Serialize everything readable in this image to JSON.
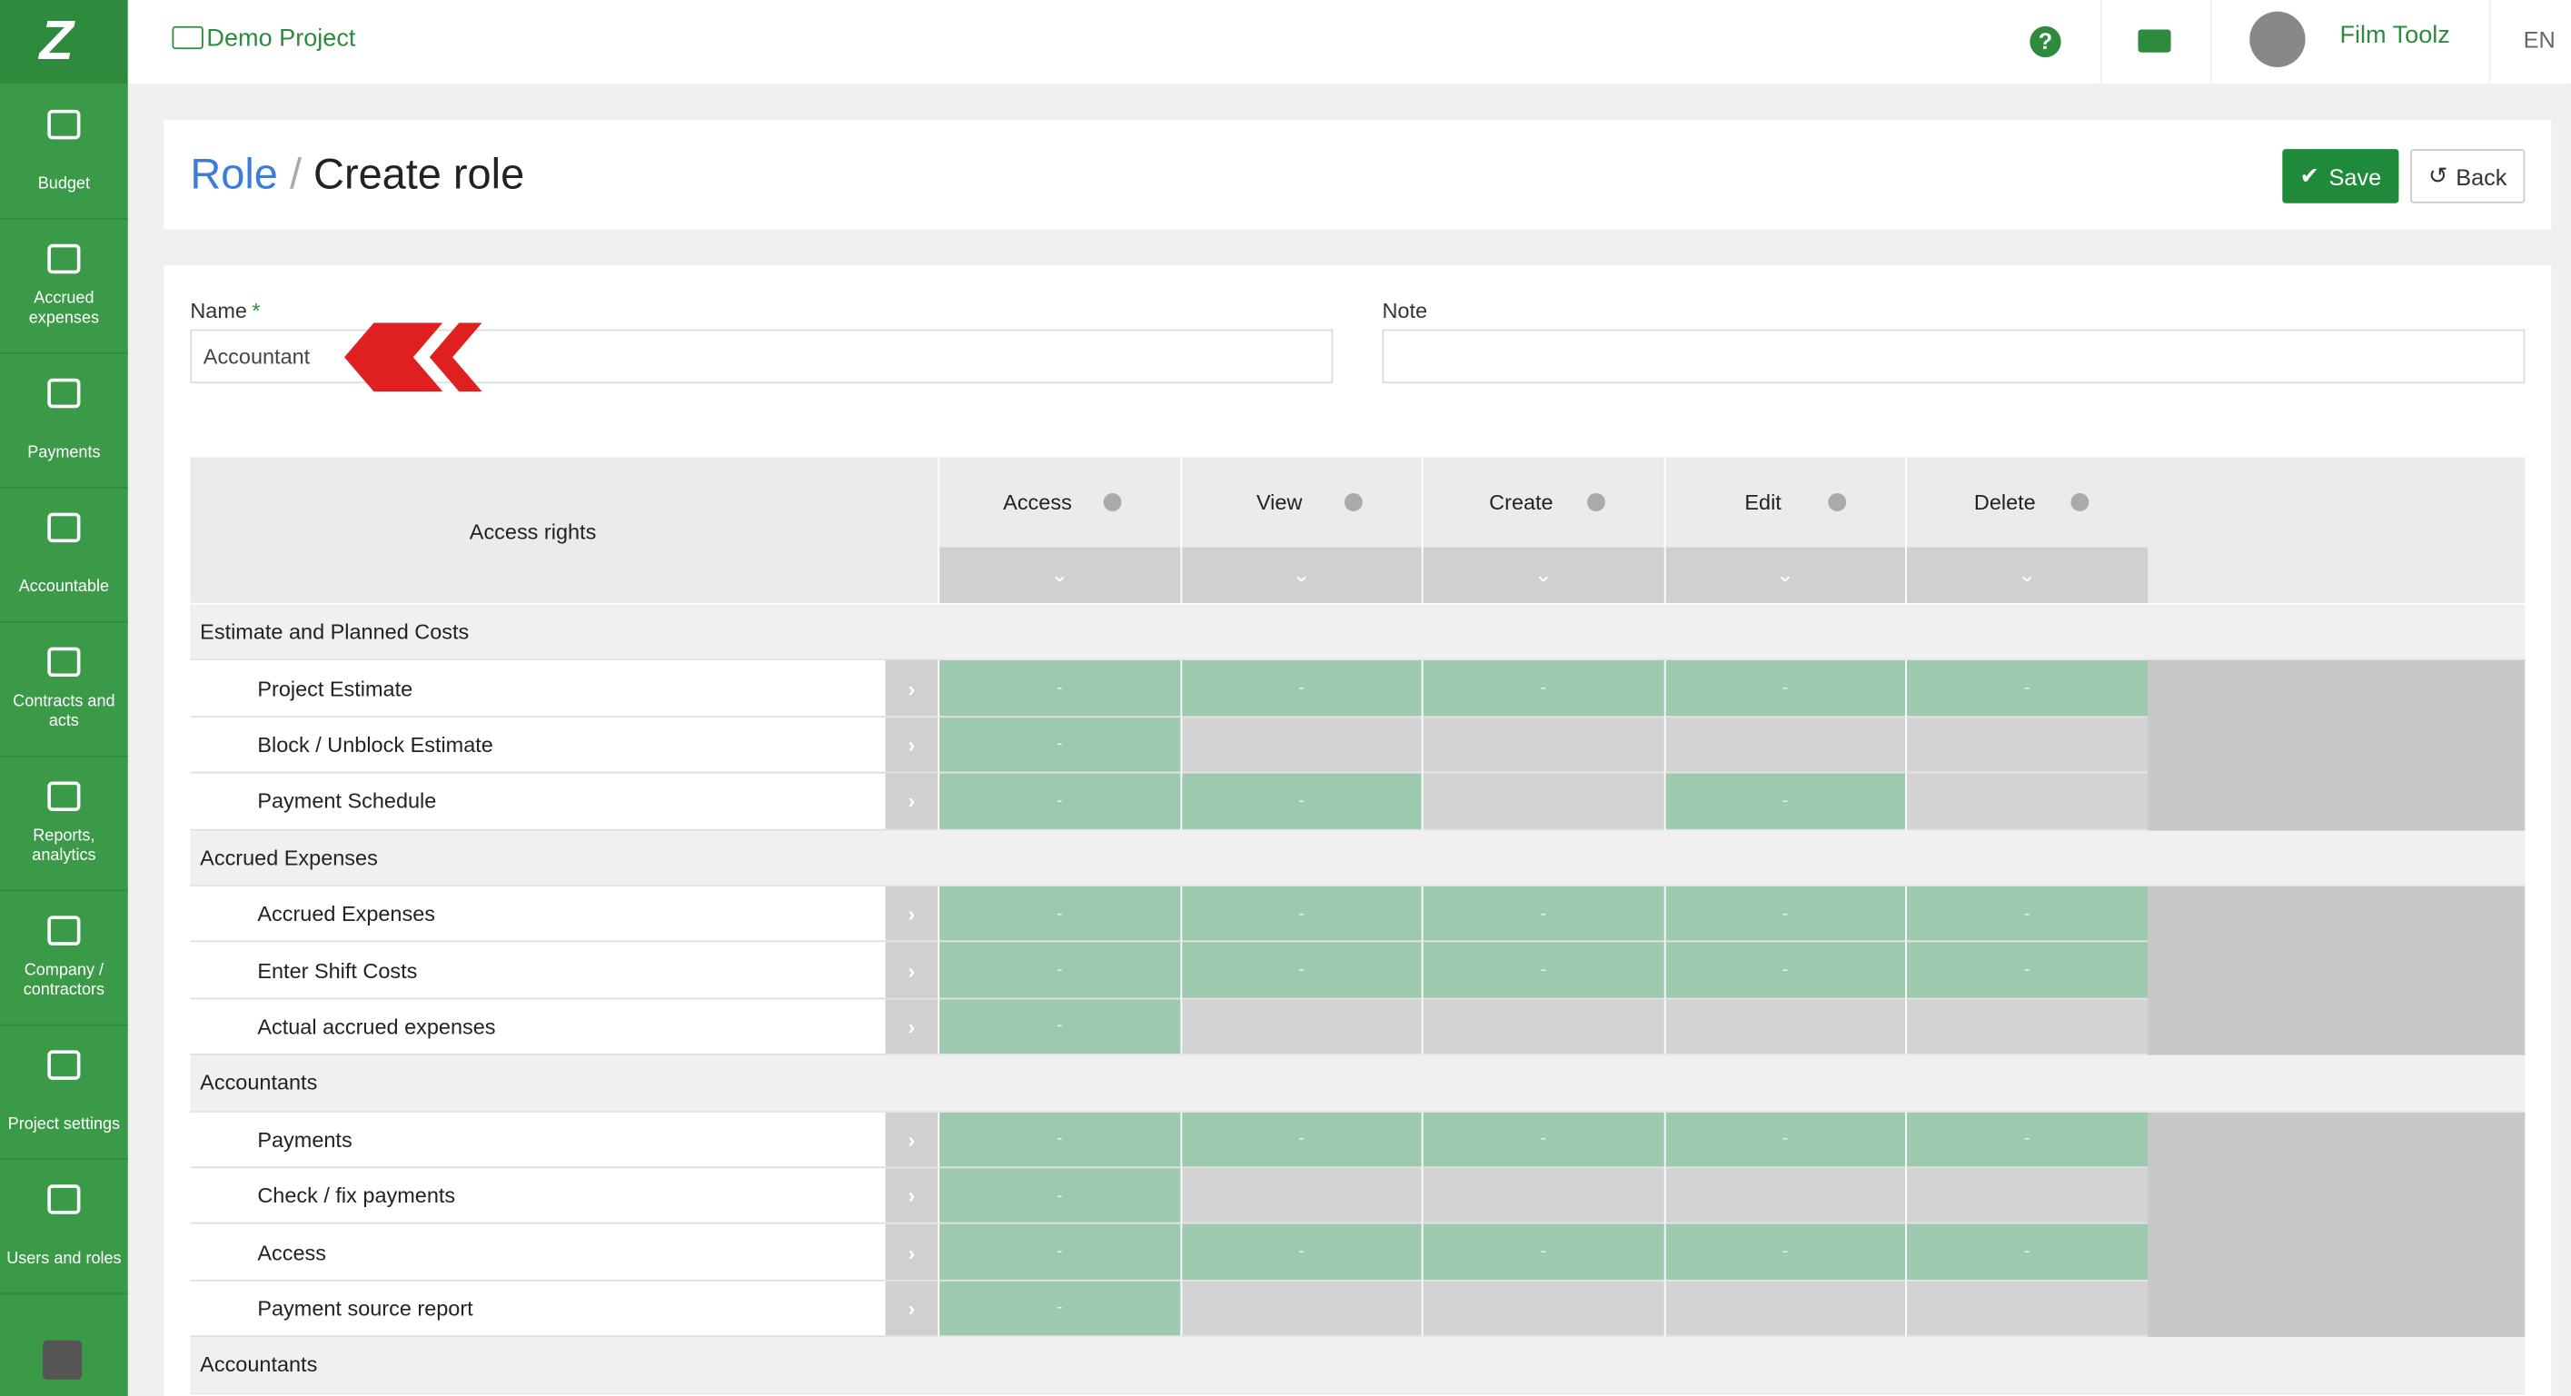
{
  "header": {
    "project": "Demo Project",
    "user": "Film Toolz",
    "language": "EN"
  },
  "sidebar": {
    "items": [
      "Budget",
      "Accrued expenses",
      "Payments",
      "Accountable",
      "Contracts and acts",
      "Reports, analytics",
      "Company / contractors",
      "Project settings",
      "Users and roles"
    ]
  },
  "page": {
    "breadcrumb": "Role",
    "separator": "/",
    "title": "Create role",
    "save": "Save",
    "back": "Back"
  },
  "form": {
    "name_label": "Name",
    "required_mark": "*",
    "name_value": "Accountant",
    "note_label": "Note"
  },
  "table": {
    "header": "Access rights",
    "columns": [
      "Access",
      "View",
      "Create",
      "Edit",
      "Delete"
    ],
    "sections": [
      {
        "title": "Estimate and Planned Costs",
        "rows": [
          {
            "label": "Project Estimate",
            "cells": [
              "-",
              "-",
              "-",
              "-",
              "-"
            ]
          },
          {
            "label": "Block / Unblock Estimate",
            "cells": [
              "-",
              null,
              null,
              null,
              null
            ]
          },
          {
            "label": "Payment Schedule",
            "cells": [
              "-",
              "-",
              null,
              "-",
              null
            ]
          }
        ]
      },
      {
        "title": "Accrued Expenses",
        "rows": [
          {
            "label": "Accrued Expenses",
            "cells": [
              "-",
              "-",
              "-",
              "-",
              "-"
            ]
          },
          {
            "label": "Enter Shift Costs",
            "cells": [
              "-",
              "-",
              "-",
              "-",
              "-"
            ]
          },
          {
            "label": "Actual accrued expenses",
            "cells": [
              "-",
              null,
              null,
              null,
              null
            ]
          }
        ]
      },
      {
        "title": "Accountants",
        "rows": [
          {
            "label": "Payments",
            "cells": [
              "-",
              "-",
              "-",
              "-",
              "-"
            ]
          },
          {
            "label": "Check / fix payments",
            "cells": [
              "-",
              null,
              null,
              null,
              null
            ]
          },
          {
            "label": "Access",
            "cells": [
              "-",
              "-",
              "-",
              "-",
              "-"
            ]
          },
          {
            "label": "Payment source report",
            "cells": [
              "-",
              null,
              null,
              null,
              null
            ]
          }
        ]
      },
      {
        "title": "Accountants",
        "rows": []
      }
    ]
  }
}
